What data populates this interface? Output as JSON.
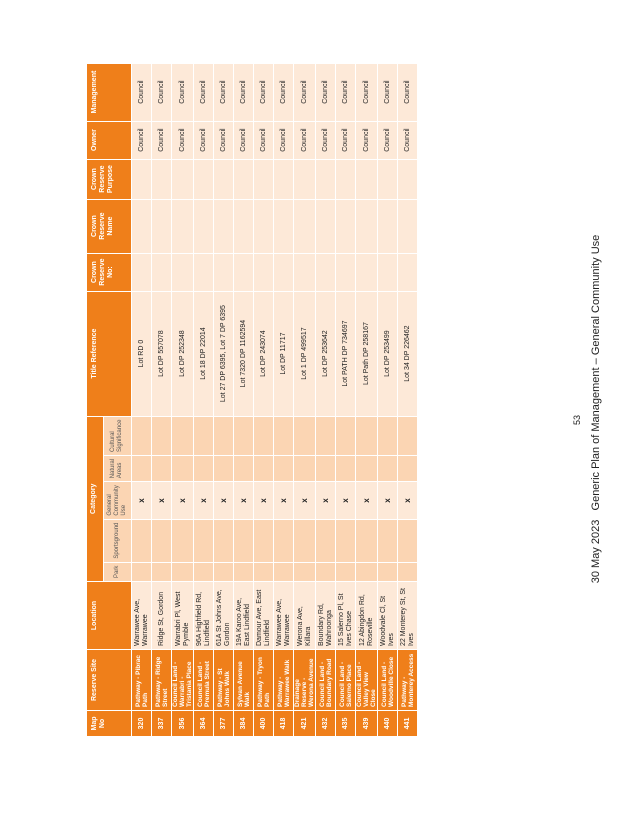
{
  "header": {
    "map_no": "Map No",
    "reserve_site": "Reserve Site",
    "location": "Location",
    "category": "Category",
    "category_sub": [
      "Park",
      "Sportsground",
      "General Community Use",
      "Natural Areas",
      "Cultural Significance"
    ],
    "title_reference": "Title Reference",
    "crown_reserve_no": "Crown Reserve No:",
    "crown_reserve_name": "Crown Reserve Name",
    "crown_reserve_purpose": "Crown Reserve Purpose",
    "owner": "Owner",
    "management": "Management"
  },
  "rows": [
    {
      "map": "320",
      "site": "Pathway - Pibrac Path",
      "location": "Warrawee Ave, Warrawee",
      "gcu": "x",
      "title": "Lot RD 0",
      "owner": "Council",
      "management": "Council"
    },
    {
      "map": "337",
      "site": "Pathway - Ridge Street",
      "location": "Ridge St, Gordon",
      "gcu": "x",
      "title": "Lot DP 557078",
      "owner": "Council",
      "management": "Council"
    },
    {
      "map": "356",
      "site": "Council Land - Warrabri - Tristania Place",
      "location": "Warrabri Pl, West Pymble",
      "gcu": "x",
      "title": "Lot DP 252348",
      "owner": "Council",
      "management": "Council"
    },
    {
      "map": "364",
      "site": "Council Land - Premula Street",
      "location": "96A Highfield Rd, Lindfield",
      "gcu": "x",
      "title": "Lot 18 DP 22014",
      "owner": "Council",
      "management": "Council"
    },
    {
      "map": "377",
      "site": "Pathway - St Johns Walk",
      "location": "61A St Johns Ave, Gordon",
      "gcu": "x",
      "title": "Lot 27 DP 6395, Lot 7 DP 6395",
      "owner": "Council",
      "management": "Council"
    },
    {
      "map": "384",
      "site": "Sylvan Avenue Walk",
      "location": "19A Karoo Ave, East Lindfield",
      "gcu": "x",
      "title": "Lot 7320 DP 1162594",
      "owner": "Council",
      "management": "Council"
    },
    {
      "map": "400",
      "site": "Pathway - Tryon Path",
      "location": "Damour Ave, East Lindfield",
      "gcu": "x",
      "title": "Lot DP 243074",
      "owner": "Council",
      "management": "Council"
    },
    {
      "map": "418",
      "site": "Pathway - Warrawee Walk",
      "location": "Warrawee Ave, Warrawee",
      "gcu": "x",
      "title": "Lot DP 11717",
      "owner": "Council",
      "management": "Council"
    },
    {
      "map": "421",
      "site": "Drainage Reserve - Werona Avenue",
      "location": "Werona Ave, Killara",
      "gcu": "x",
      "title": "Lot 1 DP 499517",
      "owner": "Council",
      "management": "Council"
    },
    {
      "map": "432",
      "site": "Council Land - Boundary Road",
      "location": "Boundary Rd, Wahroonga",
      "gcu": "x",
      "title": "Lot DP 253642",
      "owner": "Council",
      "management": "Council"
    },
    {
      "map": "435",
      "site": "Council Land - Salerno Place",
      "location": "15 Salerno Pl, St Ives Chase",
      "gcu": "x",
      "title": "Lot PATH DP 734697",
      "owner": "Council",
      "management": "Council"
    },
    {
      "map": "439",
      "site": "Council Land - Valley View Close",
      "location": "12 Abingdon Rd, Roseville",
      "gcu": "x",
      "title": "Lot Path DP 258167",
      "owner": "Council",
      "management": "Council"
    },
    {
      "map": "440",
      "site": "Council Land - Woodville Close",
      "location": "Woodvale Cl, St Ives",
      "gcu": "x",
      "title": "Lot DP 253499",
      "owner": "Council",
      "management": "Council"
    },
    {
      "map": "441",
      "site": "Pathway - Monterey Access",
      "location": "22 Monterey St, St Ives",
      "gcu": "x",
      "title": "Lot 34 DP 226462",
      "owner": "Council",
      "management": "Council"
    }
  ],
  "footer": {
    "date": "30 May 2023",
    "doc_title": "Generic Plan of Management – General Community Use",
    "page": "53"
  }
}
